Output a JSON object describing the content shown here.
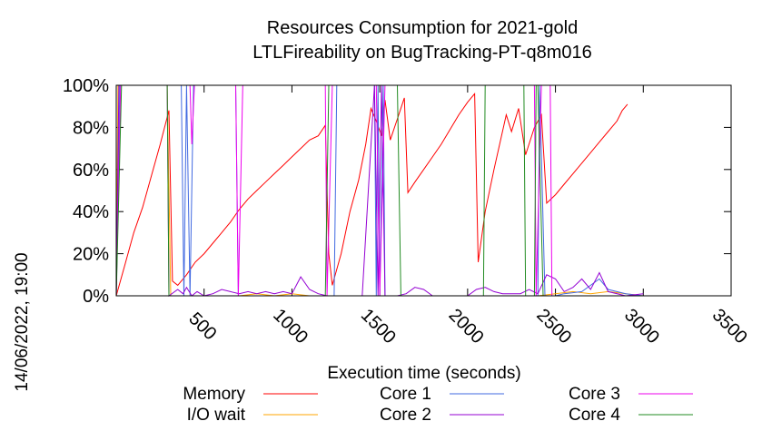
{
  "chart_data": {
    "type": "line",
    "title": "Resources Consumption for 2021-gold",
    "subtitle": "LTLFireability on BugTracking-PT-q8m016",
    "xlabel": "Execution time (seconds)",
    "ylabel": "",
    "xlim": [
      0,
      3500
    ],
    "ylim": [
      0,
      100
    ],
    "xticks": [
      "500",
      "1000",
      "1500",
      "2000",
      "2500",
      "3000",
      "3500"
    ],
    "yticks": [
      "0%",
      "20%",
      "40%",
      "60%",
      "80%",
      "100%"
    ],
    "timestamp": "14/06/2022, 19:00",
    "grid": false,
    "legend_position": "bottom",
    "series": [
      {
        "name": "Memory",
        "color": "#ff0000",
        "points": [
          [
            0,
            0
          ],
          [
            50,
            15
          ],
          [
            100,
            30
          ],
          [
            150,
            42
          ],
          [
            200,
            57
          ],
          [
            250,
            72
          ],
          [
            300,
            88
          ],
          [
            320,
            7
          ],
          [
            350,
            5
          ],
          [
            400,
            10
          ],
          [
            450,
            16
          ],
          [
            500,
            20
          ],
          [
            550,
            25
          ],
          [
            600,
            30
          ],
          [
            650,
            35
          ],
          [
            700,
            41
          ],
          [
            750,
            46
          ],
          [
            800,
            50
          ],
          [
            850,
            54
          ],
          [
            900,
            58
          ],
          [
            950,
            62
          ],
          [
            1000,
            66
          ],
          [
            1050,
            70
          ],
          [
            1100,
            74
          ],
          [
            1150,
            76
          ],
          [
            1190,
            81
          ],
          [
            1210,
            20
          ],
          [
            1230,
            5
          ],
          [
            1280,
            20
          ],
          [
            1330,
            40
          ],
          [
            1380,
            55
          ],
          [
            1420,
            72
          ],
          [
            1450,
            89
          ],
          [
            1480,
            83
          ],
          [
            1510,
            76
          ],
          [
            1530,
            93
          ],
          [
            1560,
            74
          ],
          [
            1600,
            84
          ],
          [
            1640,
            94
          ],
          [
            1660,
            49
          ],
          [
            1700,
            54
          ],
          [
            1750,
            60
          ],
          [
            1800,
            66
          ],
          [
            1850,
            72
          ],
          [
            1900,
            79
          ],
          [
            1950,
            86
          ],
          [
            2000,
            92
          ],
          [
            2040,
            96
          ],
          [
            2060,
            16
          ],
          [
            2100,
            40
          ],
          [
            2150,
            60
          ],
          [
            2220,
            86
          ],
          [
            2250,
            78
          ],
          [
            2290,
            89
          ],
          [
            2330,
            67
          ],
          [
            2380,
            80
          ],
          [
            2420,
            86
          ],
          [
            2450,
            44
          ],
          [
            2500,
            48
          ],
          [
            2550,
            53
          ],
          [
            2600,
            58
          ],
          [
            2650,
            63
          ],
          [
            2700,
            68
          ],
          [
            2750,
            73
          ],
          [
            2800,
            78
          ],
          [
            2850,
            83
          ],
          [
            2880,
            88
          ],
          [
            2910,
            91
          ]
        ]
      },
      {
        "name": "I/O wait",
        "color": "#ffa500",
        "points": [
          [
            0,
            0
          ],
          [
            10,
            100
          ],
          [
            20,
            100
          ],
          [
            290,
            100
          ],
          [
            310,
            0
          ],
          [
            500,
            0
          ],
          [
            700,
            0
          ],
          [
            800,
            1
          ],
          [
            900,
            0
          ],
          [
            1000,
            1
          ],
          [
            1100,
            0
          ],
          [
            1190,
            0
          ],
          [
            1200,
            0
          ],
          [
            1220,
            0
          ],
          [
            1400,
            0
          ],
          [
            1700,
            0
          ],
          [
            1900,
            0
          ],
          [
            2000,
            0
          ],
          [
            2200,
            0
          ],
          [
            2400,
            0
          ],
          [
            2500,
            1
          ],
          [
            2600,
            2
          ],
          [
            2700,
            1
          ],
          [
            2800,
            2
          ],
          [
            2900,
            1
          ],
          [
            3000,
            0
          ],
          [
            3500,
            0
          ]
        ]
      },
      {
        "name": "Core 1",
        "color": "#4169e1",
        "points": [
          [
            0,
            0
          ],
          [
            20,
            100
          ],
          [
            370,
            100
          ],
          [
            385,
            0
          ],
          [
            400,
            100
          ],
          [
            420,
            0
          ],
          [
            440,
            100
          ],
          [
            680,
            100
          ],
          [
            695,
            0
          ],
          [
            1240,
            0
          ],
          [
            1255,
            100
          ],
          [
            1470,
            100
          ],
          [
            1480,
            0
          ],
          [
            1490,
            100
          ],
          [
            1500,
            0
          ],
          [
            1520,
            100
          ],
          [
            1530,
            0
          ],
          [
            2400,
            0
          ],
          [
            2410,
            100
          ],
          [
            2440,
            0
          ],
          [
            2500,
            0
          ],
          [
            2550,
            1
          ],
          [
            2650,
            2
          ],
          [
            2700,
            5
          ],
          [
            2750,
            8
          ],
          [
            2800,
            3
          ],
          [
            2900,
            1
          ],
          [
            3000,
            0
          ]
        ]
      },
      {
        "name": "Core 2",
        "color": "#9400d3",
        "points": [
          [
            0,
            0
          ],
          [
            15,
            100
          ],
          [
            290,
            100
          ],
          [
            300,
            0
          ],
          [
            350,
            3
          ],
          [
            380,
            1
          ],
          [
            400,
            4
          ],
          [
            430,
            0
          ],
          [
            460,
            2
          ],
          [
            500,
            0
          ],
          [
            550,
            1
          ],
          [
            600,
            3
          ],
          [
            650,
            2
          ],
          [
            700,
            1
          ],
          [
            750,
            2
          ],
          [
            800,
            1
          ],
          [
            850,
            2
          ],
          [
            900,
            1
          ],
          [
            950,
            2
          ],
          [
            1000,
            1
          ],
          [
            1050,
            9
          ],
          [
            1100,
            3
          ],
          [
            1150,
            1
          ],
          [
            1200,
            0
          ],
          [
            1250,
            0
          ],
          [
            1400,
            0
          ],
          [
            1470,
            100
          ],
          [
            1490,
            0
          ],
          [
            1510,
            100
          ],
          [
            1530,
            0
          ],
          [
            1600,
            0
          ],
          [
            1650,
            1
          ],
          [
            1700,
            4
          ],
          [
            1750,
            3
          ],
          [
            1800,
            0
          ],
          [
            2000,
            0
          ],
          [
            2050,
            3
          ],
          [
            2100,
            4
          ],
          [
            2150,
            2
          ],
          [
            2200,
            1
          ],
          [
            2300,
            1
          ],
          [
            2350,
            3
          ],
          [
            2400,
            1
          ],
          [
            2450,
            10
          ],
          [
            2500,
            8
          ],
          [
            2550,
            2
          ],
          [
            2600,
            4
          ],
          [
            2650,
            8
          ],
          [
            2700,
            3
          ],
          [
            2750,
            11
          ],
          [
            2800,
            2
          ],
          [
            2900,
            0
          ],
          [
            3000,
            1
          ]
        ]
      },
      {
        "name": "Core 3",
        "color": "#ee00ee",
        "points": [
          [
            0,
            0
          ],
          [
            25,
            100
          ],
          [
            420,
            100
          ],
          [
            430,
            72
          ],
          [
            445,
            100
          ],
          [
            680,
            100
          ],
          [
            695,
            0
          ],
          [
            720,
            100
          ],
          [
            1190,
            100
          ],
          [
            1200,
            0
          ],
          [
            1230,
            100
          ],
          [
            1480,
            100
          ],
          [
            1500,
            0
          ],
          [
            1530,
            100
          ],
          [
            2380,
            100
          ],
          [
            2390,
            0
          ],
          [
            2420,
            100
          ],
          [
            2470,
            100
          ],
          [
            2480,
            0
          ],
          [
            2600,
            0
          ],
          [
            2800,
            0
          ]
        ]
      },
      {
        "name": "Core 4",
        "color": "#228b22",
        "points": [
          [
            0,
            0
          ],
          [
            30,
            100
          ],
          [
            290,
            100
          ],
          [
            300,
            0
          ],
          [
            1190,
            0
          ],
          [
            1210,
            100
          ],
          [
            1600,
            100
          ],
          [
            1620,
            0
          ],
          [
            2090,
            0
          ],
          [
            2100,
            100
          ],
          [
            2320,
            100
          ],
          [
            2330,
            0
          ],
          [
            2380,
            0
          ],
          [
            2390,
            100
          ],
          [
            2400,
            100
          ],
          [
            2430,
            0
          ],
          [
            2500,
            0
          ],
          [
            2800,
            0
          ]
        ]
      }
    ]
  }
}
